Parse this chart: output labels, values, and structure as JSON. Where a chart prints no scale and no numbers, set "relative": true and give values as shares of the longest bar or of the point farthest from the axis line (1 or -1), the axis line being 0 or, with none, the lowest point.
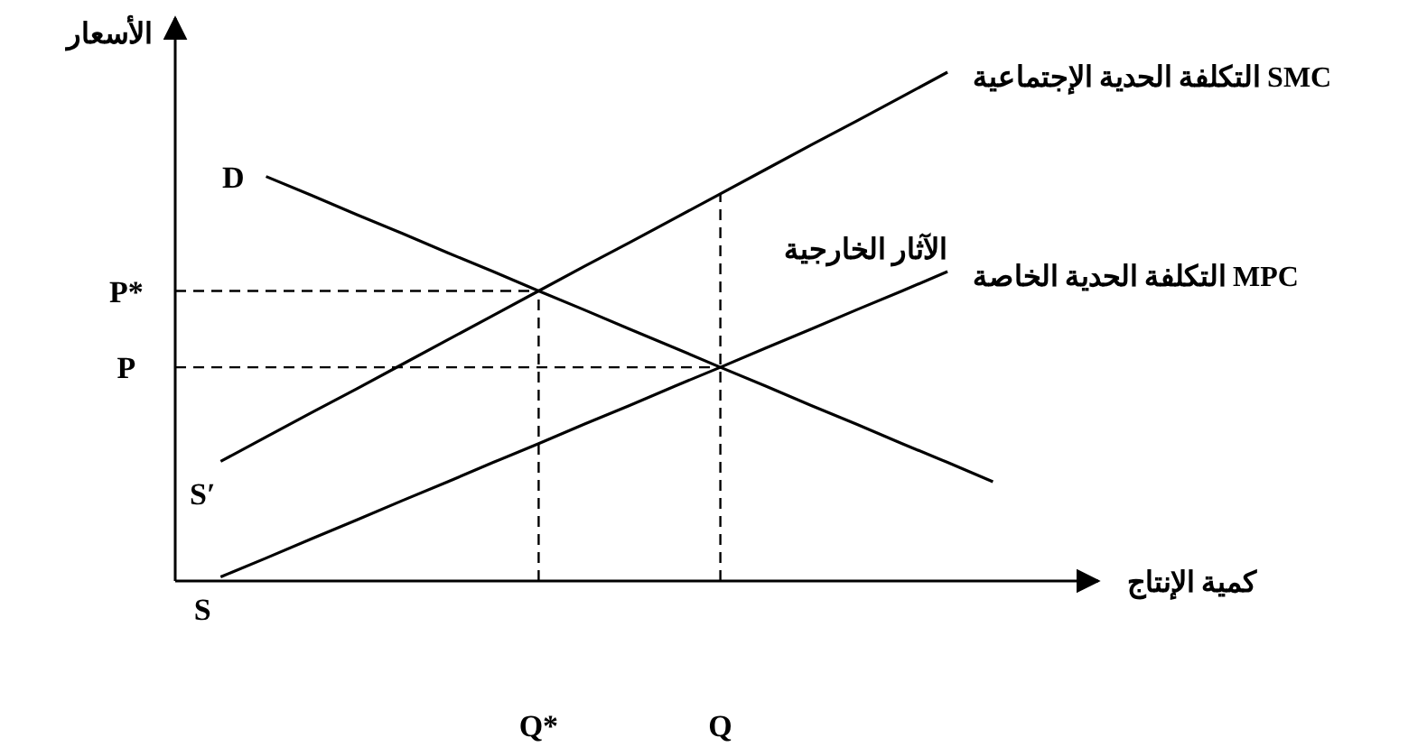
{
  "chart_data": {
    "type": "line",
    "relative": true,
    "xlabel": "كمية الإنتاج",
    "ylabel": "الأسعار",
    "categories": [
      null,
      null,
      null,
      null,
      null,
      null,
      null,
      null,
      "Q*",
      null,
      null,
      null,
      "Q",
      null,
      null,
      null,
      null,
      null,
      null,
      null,
      null
    ],
    "series": [
      {
        "name": "D",
        "color": "#000000",
        "values": [
          null,
          null,
          0.795,
          0.758,
          0.72,
          0.683,
          0.645,
          0.608,
          0.57,
          0.533,
          0.495,
          0.458,
          0.42,
          0.383,
          0.345,
          0.308,
          0.27,
          0.233,
          0.195,
          null,
          null
        ]
      },
      {
        "name": "التكلفة الحدية الإجتماعية SMC",
        "color": "#000000",
        "values": [
          null,
          0.235,
          0.283,
          0.331,
          0.378,
          0.426,
          0.474,
          0.522,
          0.57,
          0.618,
          0.665,
          0.713,
          0.761,
          0.809,
          0.857,
          0.904,
          0.952,
          1,
          null,
          null,
          null
        ]
      },
      {
        "name": "التكلفة الحدية الخاصة MPC",
        "color": "#000000",
        "values": [
          null,
          0.008,
          0.045,
          0.083,
          0.12,
          0.158,
          0.195,
          0.233,
          0.27,
          0.308,
          0.345,
          0.383,
          0.42,
          0.458,
          0.495,
          0.533,
          0.57,
          0.608,
          null,
          null,
          null
        ]
      }
    ],
    "ref_lines": [
      {
        "axis": "y",
        "value": 0.57,
        "label": "P*",
        "line_style": "dashed"
      },
      {
        "axis": "y",
        "value": 0.42,
        "label": "P",
        "line_style": "dashed"
      },
      {
        "axis": "x",
        "value": "Q*",
        "line_style": "dashed"
      },
      {
        "axis": "x",
        "value": "Q",
        "line_style": "dashed",
        "label": "الآثار الخارجية"
      }
    ],
    "annotations": [
      "S′",
      "S"
    ]
  }
}
